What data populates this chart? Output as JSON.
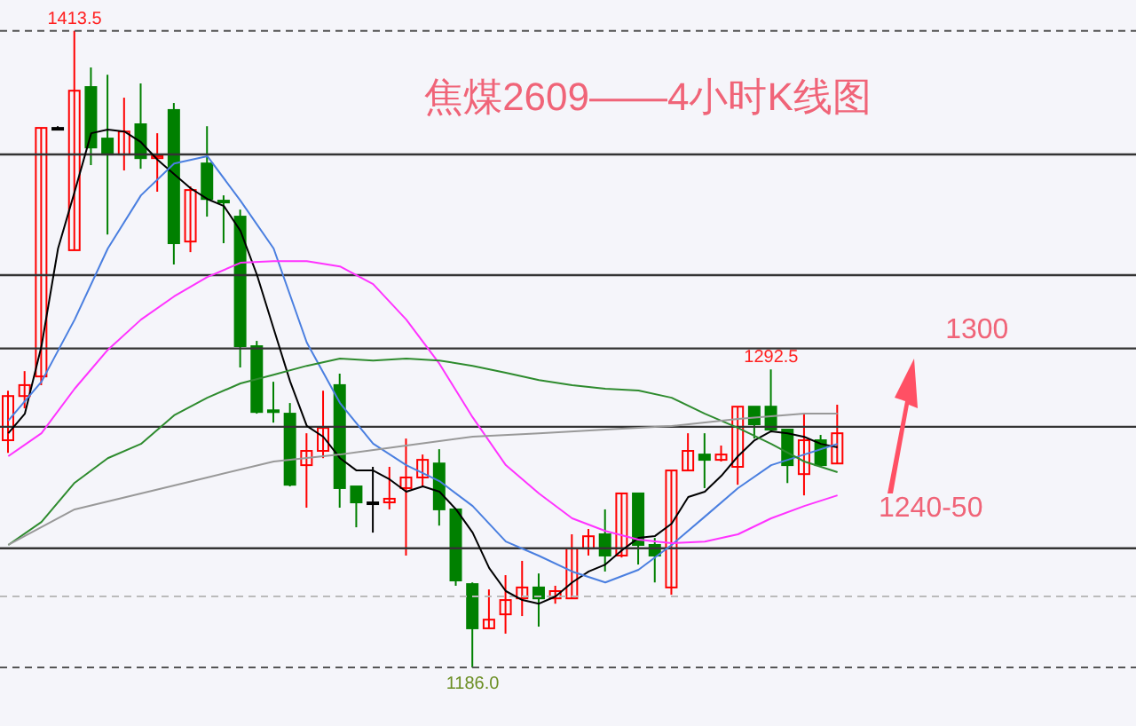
{
  "chart_data": {
    "type": "candlestick",
    "title": "焦煤2609——4小时K线图",
    "categories": [
      null,
      null,
      null,
      null,
      null,
      null,
      null,
      null,
      null,
      null,
      null,
      null,
      null,
      null,
      null,
      null,
      null,
      null,
      null,
      null,
      null,
      null,
      null,
      null,
      null,
      null,
      null,
      null,
      null,
      null,
      null,
      null,
      null,
      null,
      null,
      null,
      null,
      null,
      null,
      null,
      null,
      null,
      null,
      null,
      null,
      null,
      null,
      null,
      null,
      null,
      null
    ],
    "ohlc": [
      [
        1267.2,
        1284.9,
        1262.7,
        1283.0
      ],
      [
        1283.0,
        1291.9,
        1278.6,
        1286.9
      ],
      [
        1290.0,
        1378.8,
        1286.9,
        1378.8
      ],
      [
        1378.8,
        1379.4,
        1378.2,
        1378.8
      ],
      [
        1335.1,
        1413.5,
        1335.1,
        1392.1
      ],
      [
        1393.4,
        1400.4,
        1365.5,
        1371.8
      ],
      [
        1375.0,
        1397.8,
        1340.7,
        1369.3
      ],
      [
        1369.3,
        1389.6,
        1363.6,
        1377.5
      ],
      [
        1380.1,
        1394.7,
        1364.2,
        1368.0
      ],
      [
        1368.0,
        1376.9,
        1356.0,
        1368.7
      ],
      [
        1385.2,
        1387.7,
        1330.0,
        1337.6
      ],
      [
        1338.2,
        1357.9,
        1334.4,
        1356.6
      ],
      [
        1366.1,
        1379.4,
        1347.1,
        1353.4
      ],
      [
        1352.8,
        1354.7,
        1337.6,
        1352.2
      ],
      [
        1347.1,
        1349.6,
        1293.2,
        1300.8
      ],
      [
        1300.8,
        1302.7,
        1276.7,
        1277.3
      ],
      [
        1277.9,
        1288.1,
        1273.5,
        1277.3
      ],
      [
        1276.7,
        1280.5,
        1250.7,
        1251.3
      ],
      [
        1258.3,
        1269.7,
        1243.1,
        1263.4
      ],
      [
        1263.4,
        1284.9,
        1260.8,
        1271.6
      ],
      [
        1286.9,
        1291.0,
        1243.1,
        1250.1
      ],
      [
        1250.7,
        1250.7,
        1236.1,
        1245.0
      ],
      [
        1245.0,
        1257.7,
        1234.2,
        1245.0
      ],
      [
        1245.0,
        1257.7,
        1242.5,
        1246.3
      ],
      [
        1250.1,
        1267.8,
        1226.0,
        1253.9
      ],
      [
        1253.9,
        1262.1,
        1250.7,
        1260.2
      ],
      [
        1258.9,
        1264.0,
        1236.7,
        1242.5
      ],
      [
        1242.5,
        1242.5,
        1215.2,
        1217.1
      ],
      [
        1215.8,
        1216.4,
        1186.0,
        1200.0
      ],
      [
        1200.0,
        1213.9,
        1200.0,
        1203.1
      ],
      [
        1205.0,
        1219.0,
        1198.1,
        1210.1
      ],
      [
        1210.7,
        1224.1,
        1204.4,
        1214.6
      ],
      [
        1214.6,
        1219.6,
        1200.6,
        1210.7
      ],
      [
        1210.7,
        1215.2,
        1208.8,
        1213.3
      ],
      [
        1210.7,
        1233.6,
        1210.7,
        1228.5
      ],
      [
        1228.5,
        1235.5,
        1226.0,
        1232.9
      ],
      [
        1233.6,
        1242.5,
        1220.3,
        1226.0
      ],
      [
        1226.0,
        1248.2,
        1225.3,
        1248.2
      ],
      [
        1248.2,
        1248.2,
        1222.8,
        1229.8
      ],
      [
        1229.8,
        1232.3,
        1216.4,
        1226.0
      ],
      [
        1214.6,
        1256.4,
        1212.0,
        1256.4
      ],
      [
        1256.4,
        1269.7,
        1256.4,
        1263.4
      ],
      [
        1262.1,
        1269.7,
        1250.1,
        1260.2
      ],
      [
        1260.2,
        1265.3,
        1259.6,
        1262.1
      ],
      [
        1257.7,
        1279.2,
        1251.3,
        1279.2
      ],
      [
        1279.2,
        1279.2,
        1267.8,
        1272.9
      ],
      [
        1279.2,
        1292.5,
        1270.4,
        1271.0
      ],
      [
        1271.0,
        1271.0,
        1251.9,
        1258.3
      ],
      [
        1255.1,
        1276.7,
        1247.5,
        1267.2
      ],
      [
        1267.2,
        1269.1,
        1257.7,
        1258.3
      ],
      [
        1258.9,
        1279.9,
        1258.9,
        1269.7
      ]
    ],
    "colors": [
      "#ff0000",
      "#ff0000",
      "#ff0000",
      "#000000",
      "#ff0000",
      "#008000",
      "#008000",
      "#ff0000",
      "#008000",
      "#ff0000",
      "#008000",
      "#ff0000",
      "#008000",
      "#008000",
      "#008000",
      "#008000",
      "#008000",
      "#008000",
      "#ff0000",
      "#ff0000",
      "#008000",
      "#008000",
      "#000000",
      "#ff0000",
      "#ff0000",
      "#ff0000",
      "#008000",
      "#008000",
      "#008000",
      "#ff0000",
      "#ff0000",
      "#ff0000",
      "#008000",
      "#ff0000",
      "#ff0000",
      "#ff0000",
      "#008000",
      "#ff0000",
      "#008000",
      "#008000",
      "#ff0000",
      "#ff0000",
      "#008000",
      "#ff0000",
      "#ff0000",
      "#008000",
      "#008000",
      "#008000",
      "#ff0000",
      "#008000",
      "#ff0000"
    ],
    "series": [
      {
        "type": "line",
        "color": "#000000",
        "values": [
          1269.7,
          1276.7,
          1300.8,
          1335.7,
          1356.0,
          1376.9,
          1378.2,
          1377.5,
          1373.7,
          1367.4,
          1362.3,
          1357.2,
          1353.4,
          1350.9,
          1342.0,
          1326.2,
          1307.1,
          1288.1,
          1272.3,
          1268.4,
          1260.8,
          1256.4,
          1256.4,
          1253.2,
          1248.8,
          1250.7,
          1248.8,
          1242.5,
          1234.2,
          1221.5,
          1213.3,
          1210.1,
          1208.8,
          1211.4,
          1216.4,
          1220.3,
          1222.8,
          1227.9,
          1232.3,
          1233.0,
          1237.4,
          1246.9,
          1248.8,
          1254.5,
          1261.5,
          1267.2,
          1270.4,
          1269.7,
          1268.4,
          1265.9,
          1264.7
        ]
      },
      {
        "type": "line",
        "color": "#4a7fe0",
        "values": [
          1274.2,
          null,
          1288.1,
          null,
          1310.3,
          null,
          1335.7,
          null,
          1354.7,
          null,
          1366.1,
          null,
          1368.7,
          null,
          1352.8,
          null,
          1335.7,
          null,
          1302.1,
          null,
          1280.5,
          null,
          1266.0,
          null,
          1258.3,
          null,
          1252.6,
          null,
          1243.7,
          null,
          1231.0,
          null,
          1225.9,
          null,
          1220.3,
          null,
          1216.4,
          null,
          1220.9,
          null,
          1229.8,
          null,
          1239.9,
          null,
          1250.1,
          null,
          1258.3,
          null,
          1262.1,
          null,
          1265.9
        ]
      },
      {
        "type": "line",
        "color": "#ff33ff",
        "values": [
          1261.5,
          null,
          1269.7,
          null,
          1285.6,
          null,
          1299.5,
          null,
          1310.3,
          null,
          1318.6,
          null,
          1325.5,
          null,
          1330.6,
          null,
          1331.2,
          null,
          1331.2,
          null,
          1329.3,
          null,
          1323.0,
          null,
          1310.3,
          null,
          1294.5,
          null,
          1275.4,
          null,
          1258.3,
          null,
          1248.2,
          null,
          1239.3,
          null,
          1234.8,
          null,
          1231.7,
          null,
          1230.4,
          null,
          1231.0,
          null,
          1233.6,
          null,
          1239.3,
          null,
          1243.7,
          null,
          1247.5
        ]
      },
      {
        "type": "line",
        "color": "#2e8b2e",
        "values": [
          1229.8,
          null,
          1238.0,
          null,
          1252.0,
          null,
          1260.8,
          null,
          1265.9,
          null,
          1276.1,
          null,
          1282.4,
          null,
          1287.5,
          null,
          1290.6,
          null,
          1293.8,
          null,
          1296.4,
          null,
          1295.7,
          null,
          1296.4,
          null,
          1295.7,
          null,
          1293.8,
          null,
          1291.3,
          null,
          1288.7,
          null,
          1286.9,
          null,
          1285.6,
          null,
          1285.0,
          null,
          1282.4,
          null,
          1276.7,
          null,
          1271.6,
          null,
          1265.9,
          null,
          1259.6,
          null,
          1255.8
        ]
      },
      {
        "type": "line",
        "color": "#999999",
        "values": [
          1229.8,
          null,
          null,
          null,
          1242.5,
          null,
          null,
          null,
          1248.2,
          null,
          null,
          null,
          1253.9,
          null,
          null,
          null,
          1259.6,
          null,
          null,
          null,
          1262.1,
          null,
          null,
          null,
          1265.3,
          null,
          null,
          null,
          1268.5,
          null,
          null,
          null,
          1269.7,
          null,
          null,
          null,
          1271.0,
          null,
          null,
          null,
          1272.3,
          null,
          null,
          null,
          1274.8,
          null,
          null,
          null,
          1276.7,
          null,
          1276.7
        ]
      }
    ],
    "ylim": [
      1165.1,
      1424.5
    ],
    "ref_lines": [
      {
        "axis": "y",
        "value": 1369.3,
        "color": "#333333"
      },
      {
        "axis": "y",
        "value": 1326.2,
        "color": "#333333"
      },
      {
        "axis": "y",
        "value": 1300,
        "label": "1300",
        "color": "#333333"
      },
      {
        "axis": "y",
        "value": 1272.0,
        "color": "#333333"
      },
      {
        "axis": "y",
        "value": 1228.6,
        "color": "#333333"
      },
      {
        "axis": "y",
        "value": 1413.5,
        "color": "#555555",
        "line_style": "dashed"
      },
      {
        "axis": "y",
        "value": 1211.4,
        "color": "#bbbbbb",
        "line_style": "dashed"
      },
      {
        "axis": "y",
        "value": 1186.0,
        "color": "#555555",
        "line_style": "dashed"
      }
    ],
    "annotations": [
      {
        "text": "1413.5",
        "y": 1413.5
      },
      {
        "text": "1292.5",
        "y": 1292.5
      },
      {
        "text": "1186.0",
        "y": 1186.0
      },
      "1240-50"
    ],
    "tick_labels": false
  }
}
